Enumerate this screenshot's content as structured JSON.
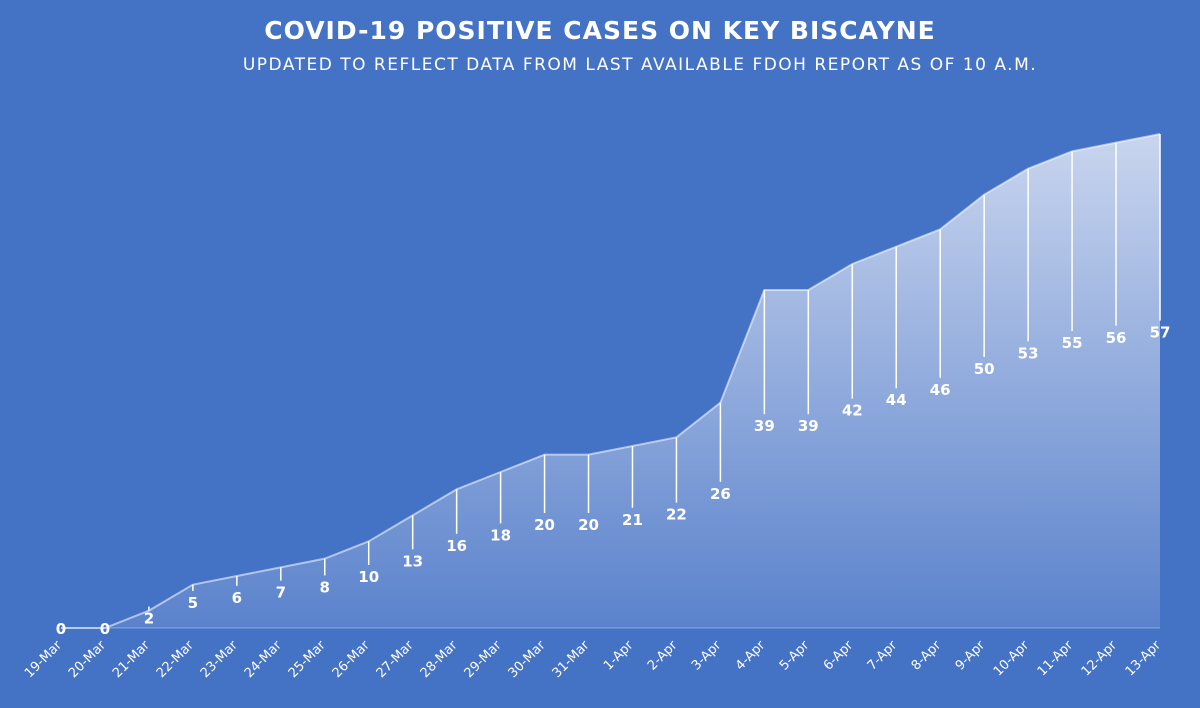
{
  "chart_data": {
    "type": "area",
    "title": "COVID-19 POSITIVE CASES ON KEY BISCAYNE",
    "subtitle": "UPDATED TO REFLECT DATA FROM LAST AVAILABLE FDOH REPORT AS OF 10 A.M.",
    "xlabel": "",
    "ylabel": "",
    "categories": [
      "19-Mar",
      "20-Mar",
      "21-Mar",
      "22-Mar",
      "23-Mar",
      "24-Mar",
      "25-Mar",
      "26-Mar",
      "27-Mar",
      "28-Mar",
      "29-Mar",
      "30-Mar",
      "31-Mar",
      "1-Apr",
      "2-Apr",
      "3-Apr",
      "4-Apr",
      "5-Apr",
      "6-Apr",
      "7-Apr",
      "8-Apr",
      "9-Apr",
      "10-Apr",
      "11-Apr",
      "12-Apr",
      "13-Apr"
    ],
    "series": [
      {
        "values": [
          0,
          0,
          2,
          5,
          6,
          7,
          8,
          10,
          13,
          16,
          18,
          20,
          20,
          21,
          22,
          26,
          39,
          39,
          42,
          44,
          46,
          50,
          53,
          55,
          56,
          57
        ]
      }
    ],
    "data_labels": [
      "0",
      "0",
      "2",
      "5",
      "6",
      "7",
      "8",
      "10",
      "13",
      "16",
      "18",
      "20",
      "20",
      "21",
      "22",
      "26",
      "39",
      "39",
      "42",
      "44",
      "46",
      "50",
      "53",
      "55",
      "56",
      "57"
    ],
    "ylim": [
      0,
      57
    ],
    "grid": false,
    "legend": "none",
    "colors": {
      "background": "#4472c4",
      "area_top": "#c9d5ee",
      "area_bottom": "#5a82cc",
      "line": "#ffffff"
    }
  }
}
